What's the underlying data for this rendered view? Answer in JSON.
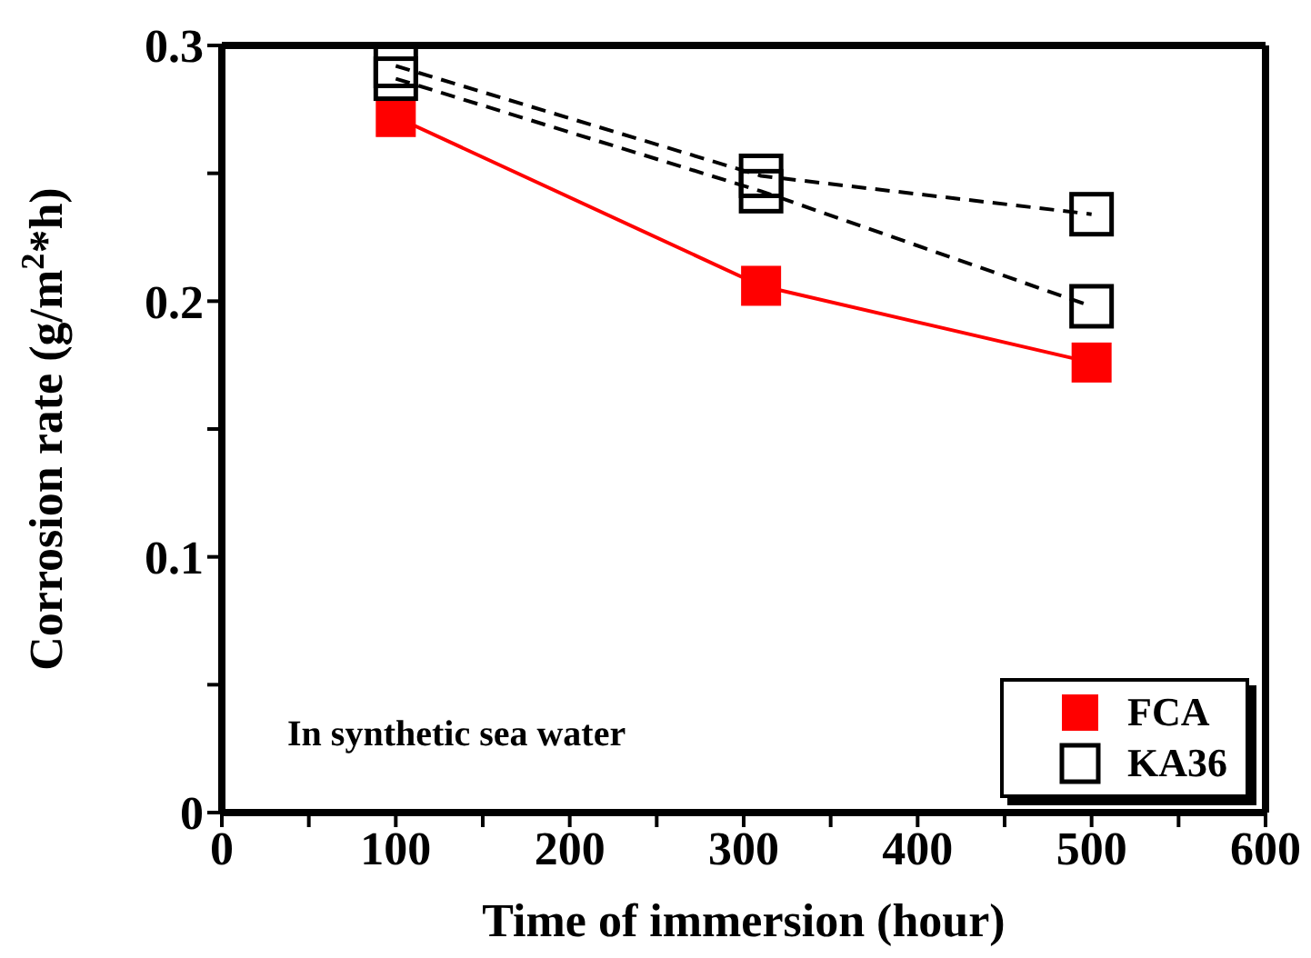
{
  "chart_data": {
    "type": "line",
    "xlabel": "Time of immersion  (hour)",
    "ylabel": "Corrosion rate (g/m$^{2}$*h)",
    "x": [
      100,
      310,
      500
    ],
    "series": [
      {
        "name": "FCA",
        "color": "#ff0000",
        "values": [
          0.272,
          0.206,
          0.176
        ],
        "line_style": "solid"
      },
      {
        "name": "KA36",
        "color": "#000000",
        "values": [
          0.292,
          0.249,
          0.234
        ],
        "line_style": "dashed"
      },
      {
        "color": "#000000",
        "values": [
          0.287,
          0.243,
          0.198
        ],
        "line_style": "dashed"
      }
    ],
    "xlim": [
      0,
      600
    ],
    "xticks": [
      0,
      {
        "value": 50,
        "label": null
      },
      100,
      {
        "value": 150,
        "label": null
      },
      200,
      {
        "value": 250,
        "label": null
      },
      300,
      {
        "value": 350,
        "label": null
      },
      400,
      {
        "value": 450,
        "label": null
      },
      500,
      {
        "value": 550,
        "label": null
      },
      600
    ],
    "ylim": [
      0,
      0.3
    ],
    "yticks": [
      0,
      {
        "value": 0.05,
        "label": null
      },
      0.1,
      {
        "value": 0.15,
        "label": null
      },
      0.2,
      {
        "value": 0.25,
        "label": null
      },
      0.3
    ],
    "marker": "square",
    "grid": false,
    "legend": "bottom right",
    "annotations": [
      "In synthetic sea water"
    ]
  }
}
